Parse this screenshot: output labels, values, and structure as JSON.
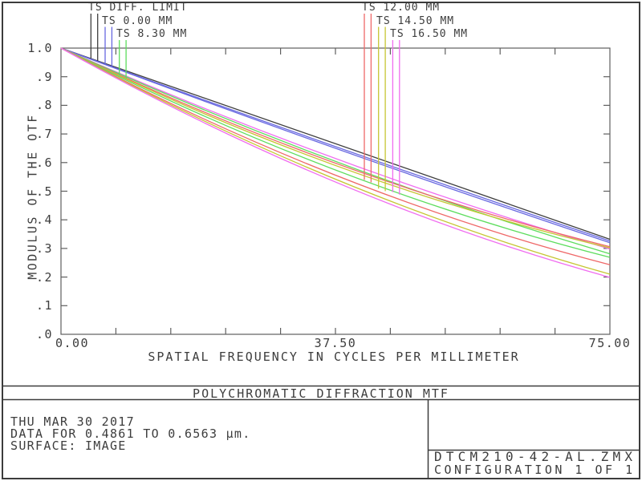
{
  "title_bar": {
    "title": "POLYCHROMATIC DIFFRACTION MTF"
  },
  "info_panel": {
    "date": "THU MAR 30 2017",
    "data_range": "DATA FOR 0.4861 TO 0.6563 µm.",
    "surface": "SURFACE: IMAGE"
  },
  "file_panel": {
    "filename": "DTCM210-42-AL.ZMX",
    "configuration": "CONFIGURATION 1 OF 1"
  },
  "colors": {
    "text": "#3d3d3d",
    "frame": "#3c3c3c",
    "axis": "#5f5f5f",
    "diff_limit": "#3f3f3f",
    "field_0": "#6868e0",
    "field_8_3": "#5ddd5d",
    "field_12": "#ef6868",
    "field_14_5": "#c6c633",
    "field_16_5": "#f06cf0"
  },
  "chart_data": {
    "type": "line",
    "title": "POLYCHROMATIC DIFFRACTION MTF",
    "xlabel": "SPATIAL FREQUENCY IN CYCLES PER MILLIMETER",
    "ylabel": "MODULUS OF THE OTF",
    "xlim": [
      0,
      75
    ],
    "ylim": [
      0.0,
      1.0
    ],
    "grid": false,
    "x_tick_values": [
      0,
      37.5,
      75
    ],
    "x_tick_labels": [
      "0.00",
      "37.50",
      "75.00"
    ],
    "y_tick_values": [
      1.0,
      0.9,
      0.8,
      0.7,
      0.6,
      0.5,
      0.4,
      0.3,
      0.2,
      0.1,
      0.0
    ],
    "y_tick_labels": [
      "1.0",
      ".9",
      ".8",
      ".7",
      ".6",
      ".5",
      ".4",
      ".3",
      ".2",
      ".1",
      ".0"
    ],
    "x_minor_divisions": 10,
    "y_minor_divisions": 10,
    "x": [
      0,
      37.5,
      75
    ],
    "series": [
      {
        "name": "TS DIFF. LIMIT",
        "color": "#3f3f3f",
        "values": [
          1.0,
          0.665,
          0.332
        ]
      },
      {
        "name": "Tangential 0.00 MM",
        "color": "#6868e0",
        "values": [
          1.0,
          0.656,
          0.326
        ]
      },
      {
        "name": "Sagittal 0.00 MM",
        "color": "#6868e0",
        "values": [
          1.0,
          0.65,
          0.32
        ]
      },
      {
        "name": "Sagittal 16.50 MM",
        "color": "#f06cf0",
        "values": [
          1.0,
          0.614,
          0.298
        ]
      },
      {
        "name": "Sagittal 8.30 MM",
        "color": "#5ddd5d",
        "values": [
          1.0,
          0.604,
          0.281
        ]
      },
      {
        "name": "Sagittal 12.00 MM",
        "color": "#ef6868",
        "values": [
          1.0,
          0.598,
          0.306
        ]
      },
      {
        "name": "Sagittal 14.50 MM",
        "color": "#c6c633",
        "values": [
          1.0,
          0.59,
          0.302
        ]
      },
      {
        "name": "Tangential 8.30 MM",
        "color": "#5ddd5d",
        "values": [
          1.0,
          0.574,
          0.269
        ]
      },
      {
        "name": "Tangential 12.00 MM",
        "color": "#ef6868",
        "values": [
          1.0,
          0.556,
          0.243
        ]
      },
      {
        "name": "Tangential 14.50 MM",
        "color": "#c6c633",
        "values": [
          1.0,
          0.542,
          0.21
        ]
      },
      {
        "name": "Tangential 16.50 MM",
        "color": "#f06cf0",
        "values": [
          1.0,
          0.532,
          0.199
        ]
      }
    ],
    "legend": {
      "position": "top",
      "groups": [
        {
          "entries": [
            {
              "label": "TS DIFF. LIMIT",
              "color": "#3f3f3f",
              "series_idx": [
                0
              ]
            },
            {
              "label": "TS 0.00 MM",
              "color": "#6868e0",
              "series_idx": [
                1,
                2
              ]
            },
            {
              "label": "TS 8.30 MM",
              "color": "#5ddd5d",
              "series_idx": [
                4,
                7
              ]
            }
          ]
        },
        {
          "entries": [
            {
              "label": "TS 12.00 MM",
              "color": "#ef6868",
              "series_idx": [
                5,
                8
              ]
            },
            {
              "label": "TS 14.50 MM",
              "color": "#c6c633",
              "series_idx": [
                6,
                9
              ]
            },
            {
              "label": "TS 16.50 MM",
              "color": "#f06cf0",
              "series_idx": [
                3,
                10
              ]
            }
          ]
        }
      ]
    }
  }
}
